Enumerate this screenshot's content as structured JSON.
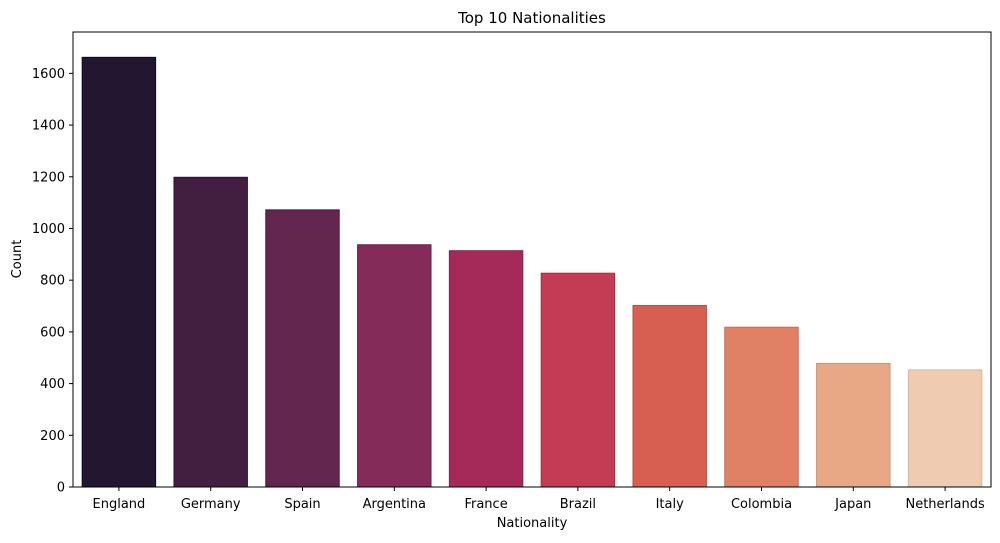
{
  "chart_data": {
    "type": "bar",
    "title": "Top 10 Nationalities",
    "xlabel": "Nationality",
    "ylabel": "Count",
    "categories": [
      "England",
      "Germany",
      "Spain",
      "Argentina",
      "France",
      "Brazil",
      "Italy",
      "Colombia",
      "Japan",
      "Netherlands"
    ],
    "values": [
      1662,
      1198,
      1072,
      937,
      914,
      827,
      702,
      618,
      478,
      453
    ],
    "colors": [
      "#221631",
      "#421f40",
      "#62264f",
      "#852b5a",
      "#a52a5a",
      "#c43c53",
      "#d65f52",
      "#e08166",
      "#e8a886",
      "#eecbb1"
    ],
    "edge_colors": [
      "#0e0a18",
      "#2a1330",
      "#4a1a3c",
      "#6a1e47",
      "#8a1f4a",
      "#a82c43",
      "#bb4b3f",
      "#c86c52",
      "#d59070",
      "#dcb59b"
    ],
    "ylim": [
      0,
      1760
    ],
    "yticks": [
      0,
      200,
      400,
      600,
      800,
      1000,
      1200,
      1400,
      1600
    ],
    "grid": false,
    "legend": "none"
  }
}
